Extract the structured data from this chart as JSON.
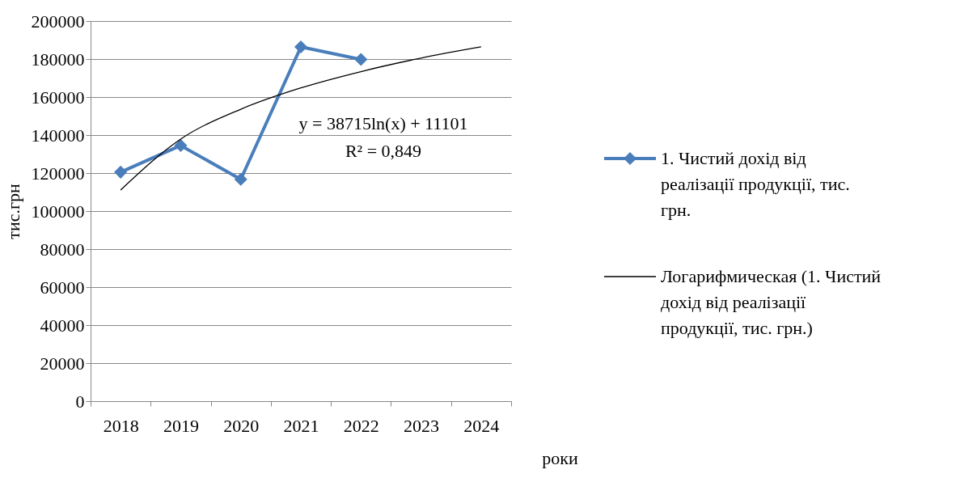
{
  "chart_data": {
    "type": "line",
    "categories": [
      "2018",
      "2019",
      "2020",
      "2021",
      "2022",
      "2023",
      "2024"
    ],
    "series": [
      {
        "name": "1. Чистий дохід від реалізації продукції, тис. грн.",
        "color": "#4a7ebb",
        "marker": "diamond",
        "values": [
          120500,
          134500,
          116700,
          186400,
          179800,
          null,
          null
        ]
      },
      {
        "name": "Логарифмическая (1. Чистий дохід від реалізації продукції, тис. грн.)",
        "color": "#000000",
        "marker": "none",
        "values": [
          111100,
          137900,
          153600,
          164800,
          173400,
          180500,
          186400
        ]
      }
    ],
    "ylabel": "тис.грн",
    "xlabel": "роки",
    "ylim": [
      0,
      200000
    ],
    "yticks": [
      0,
      20000,
      40000,
      60000,
      80000,
      100000,
      120000,
      140000,
      160000,
      180000,
      200000
    ],
    "grid": "y",
    "legend": "right",
    "line_style": "solid",
    "annotations": [
      "y = 38715ln(x) + 11101",
      "R² = 0,849"
    ]
  }
}
